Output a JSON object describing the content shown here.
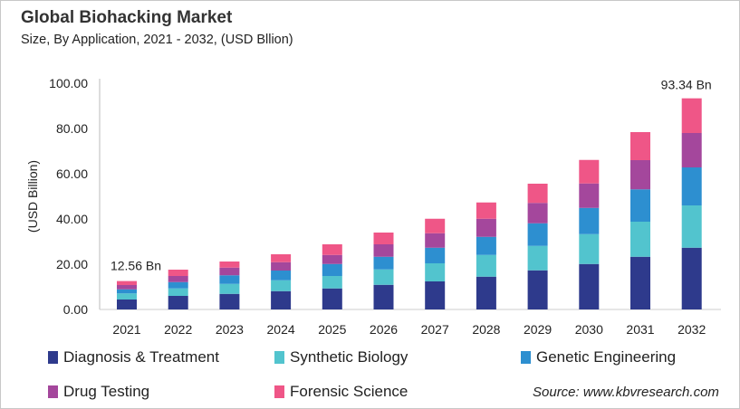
{
  "title": "Global Biohacking Market",
  "subtitle": "Size, By Application, 2021 - 2032, (USD Bllion)",
  "source": "Source: www.kbvresearch.com",
  "chart_data": {
    "type": "bar",
    "stacked": true,
    "ylabel": "(USD Billion)",
    "ylim": [
      0,
      100
    ],
    "yticks": [
      "0.00",
      "20.00",
      "40.00",
      "60.00",
      "80.00",
      "100.00"
    ],
    "grid": false,
    "legend_position": "bottom",
    "categories": [
      "2021",
      "2022",
      "2023",
      "2024",
      "2025",
      "2026",
      "2027",
      "2028",
      "2029",
      "2030",
      "2031",
      "2032"
    ],
    "series": [
      {
        "name": "Diagnosis & Treatment",
        "color": "#2e3a8c",
        "values": [
          4.4,
          6.0,
          6.9,
          8.1,
          9.3,
          10.9,
          12.4,
          14.5,
          17.3,
          20.1,
          23.3,
          27.3
        ]
      },
      {
        "name": "Synthetic Biology",
        "color": "#52c4ce",
        "values": [
          2.7,
          3.3,
          4.4,
          4.8,
          5.5,
          6.8,
          8.0,
          9.6,
          10.8,
          13.2,
          15.5,
          18.7
        ]
      },
      {
        "name": "Genetic Engineering",
        "color": "#2d8fd0",
        "values": [
          1.8,
          2.8,
          3.8,
          4.3,
          5.3,
          5.6,
          6.9,
          8.0,
          10.0,
          11.6,
          14.3,
          16.8
        ]
      },
      {
        "name": "Drug Testing",
        "color": "#a4479c",
        "values": [
          1.9,
          2.7,
          3.4,
          3.7,
          4.0,
          5.5,
          6.4,
          8.0,
          9.0,
          10.8,
          12.9,
          15.2
        ]
      },
      {
        "name": "Forensic Science",
        "color": "#ef5687",
        "values": [
          1.76,
          2.8,
          2.7,
          3.5,
          4.7,
          5.2,
          6.4,
          7.2,
          8.5,
          10.4,
          12.4,
          15.34
        ]
      }
    ],
    "annotations": [
      {
        "category": "2021",
        "text": "12.56 Bn"
      },
      {
        "category": "2032",
        "text": "93.34 Bn"
      }
    ]
  }
}
